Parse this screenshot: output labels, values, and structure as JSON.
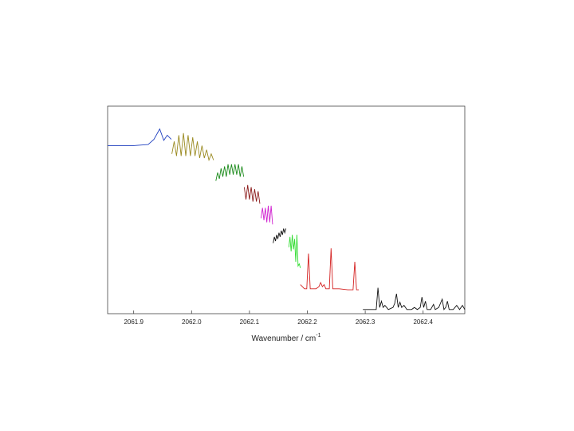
{
  "chart_data": {
    "type": "line",
    "xlabel": "Wavenumber / cm",
    "xlabel_superscript": "-1",
    "xlim": [
      2061.855,
      2062.472
    ],
    "ylim": [
      0,
      1
    ],
    "xticks": [
      2061.9,
      {
        "value": 2062.0,
        "label": "2062.0"
      },
      2062.1,
      2062.2,
      2062.3,
      2062.4
    ],
    "series": [
      {
        "color": "#1f3fbf",
        "x": [
          2061.855,
          2061.9,
          2061.925,
          2061.935,
          2061.945,
          2061.952,
          2061.958,
          2061.965
        ],
        "values": [
          0.81,
          0.81,
          0.815,
          0.84,
          0.89,
          0.835,
          0.86,
          0.84
        ]
      },
      {
        "color": "#9a8a20",
        "x": [
          2061.966,
          2061.97,
          2061.974,
          2061.978,
          2061.982,
          2061.986,
          2061.99,
          2061.994,
          2061.998,
          2062.002,
          2062.006,
          2062.01,
          2062.014,
          2062.018,
          2062.022,
          2062.026,
          2062.03,
          2062.034,
          2062.038
        ],
        "values": [
          0.77,
          0.83,
          0.76,
          0.86,
          0.76,
          0.87,
          0.76,
          0.86,
          0.76,
          0.85,
          0.76,
          0.83,
          0.75,
          0.81,
          0.75,
          0.79,
          0.74,
          0.77,
          0.74
        ]
      },
      {
        "color": "#1a8a1a",
        "x": [
          2062.042,
          2062.045,
          2062.048,
          2062.051,
          2062.054,
          2062.057,
          2062.06,
          2062.063,
          2062.066,
          2062.069,
          2062.072,
          2062.075,
          2062.078,
          2062.081,
          2062.084,
          2062.087,
          2062.09
        ],
        "values": [
          0.64,
          0.68,
          0.65,
          0.7,
          0.66,
          0.71,
          0.66,
          0.72,
          0.67,
          0.72,
          0.67,
          0.72,
          0.67,
          0.72,
          0.66,
          0.71,
          0.66
        ]
      },
      {
        "color": "#8b1a1a",
        "x": [
          2062.091,
          2062.094,
          2062.097,
          2062.1,
          2062.103,
          2062.106,
          2062.109,
          2062.112,
          2062.115,
          2062.118
        ],
        "values": [
          0.61,
          0.55,
          0.62,
          0.55,
          0.61,
          0.54,
          0.6,
          0.54,
          0.59,
          0.53
        ]
      },
      {
        "color": "#d020d0",
        "x": [
          2062.12,
          2062.1225,
          2062.125,
          2062.1275,
          2062.13,
          2062.1325,
          2062.135,
          2062.1375,
          2062.14
        ],
        "values": [
          0.46,
          0.51,
          0.45,
          0.51,
          0.44,
          0.52,
          0.44,
          0.52,
          0.43
        ]
      },
      {
        "color": "#111111",
        "x": [
          2062.141,
          2062.143,
          2062.145,
          2062.147,
          2062.149,
          2062.151,
          2062.153,
          2062.155,
          2062.157,
          2062.159,
          2062.161,
          2062.163
        ],
        "values": [
          0.34,
          0.37,
          0.35,
          0.38,
          0.36,
          0.39,
          0.37,
          0.4,
          0.38,
          0.41,
          0.39,
          0.41
        ]
      },
      {
        "color": "#33dd33",
        "x": [
          2062.168,
          2062.17,
          2062.172,
          2062.174,
          2062.176,
          2062.178,
          2062.18,
          2062.182,
          2062.184,
          2062.186,
          2062.188
        ],
        "values": [
          0.32,
          0.37,
          0.3,
          0.38,
          0.31,
          0.36,
          0.25,
          0.38,
          0.23,
          0.24,
          0.22
        ]
      },
      {
        "color": "#d42020",
        "x": [
          2062.188,
          2062.195,
          2062.199,
          2062.202,
          2062.205,
          2062.215,
          2062.22,
          2062.223,
          2062.226,
          2062.229,
          2062.232,
          2062.238,
          2062.241,
          2062.244,
          2062.255,
          2062.27,
          2062.279,
          2062.282,
          2062.285,
          2062.289
        ],
        "values": [
          0.14,
          0.12,
          0.12,
          0.29,
          0.12,
          0.12,
          0.13,
          0.15,
          0.13,
          0.14,
          0.12,
          0.12,
          0.315,
          0.12,
          0.12,
          0.115,
          0.115,
          0.25,
          0.115,
          0.115
        ]
      },
      {
        "color": "#111111",
        "x": [
          2062.296,
          2062.31,
          2062.319,
          2062.322,
          2062.325,
          2062.328,
          2062.331,
          2062.334,
          2062.34,
          2062.348,
          2062.351,
          2062.354,
          2062.357,
          2062.36,
          2062.363,
          2062.367,
          2062.372,
          2062.38,
          2062.385,
          2062.39,
          2062.395,
          2062.398,
          2062.401,
          2062.404,
          2062.407,
          2062.413,
          2062.418,
          2062.421,
          2062.427,
          2062.43,
          2062.433,
          2062.436,
          2062.439,
          2062.442,
          2062.445,
          2062.452,
          2062.458,
          2062.463,
          2062.468,
          2062.472
        ],
        "values": [
          0.02,
          0.02,
          0.02,
          0.125,
          0.03,
          0.06,
          0.03,
          0.04,
          0.02,
          0.03,
          0.05,
          0.096,
          0.03,
          0.055,
          0.03,
          0.04,
          0.02,
          0.02,
          0.03,
          0.02,
          0.03,
          0.08,
          0.03,
          0.06,
          0.02,
          0.02,
          0.045,
          0.02,
          0.03,
          0.05,
          0.07,
          0.02,
          0.03,
          0.06,
          0.02,
          0.02,
          0.04,
          0.02,
          0.04,
          0.02
        ]
      }
    ]
  }
}
